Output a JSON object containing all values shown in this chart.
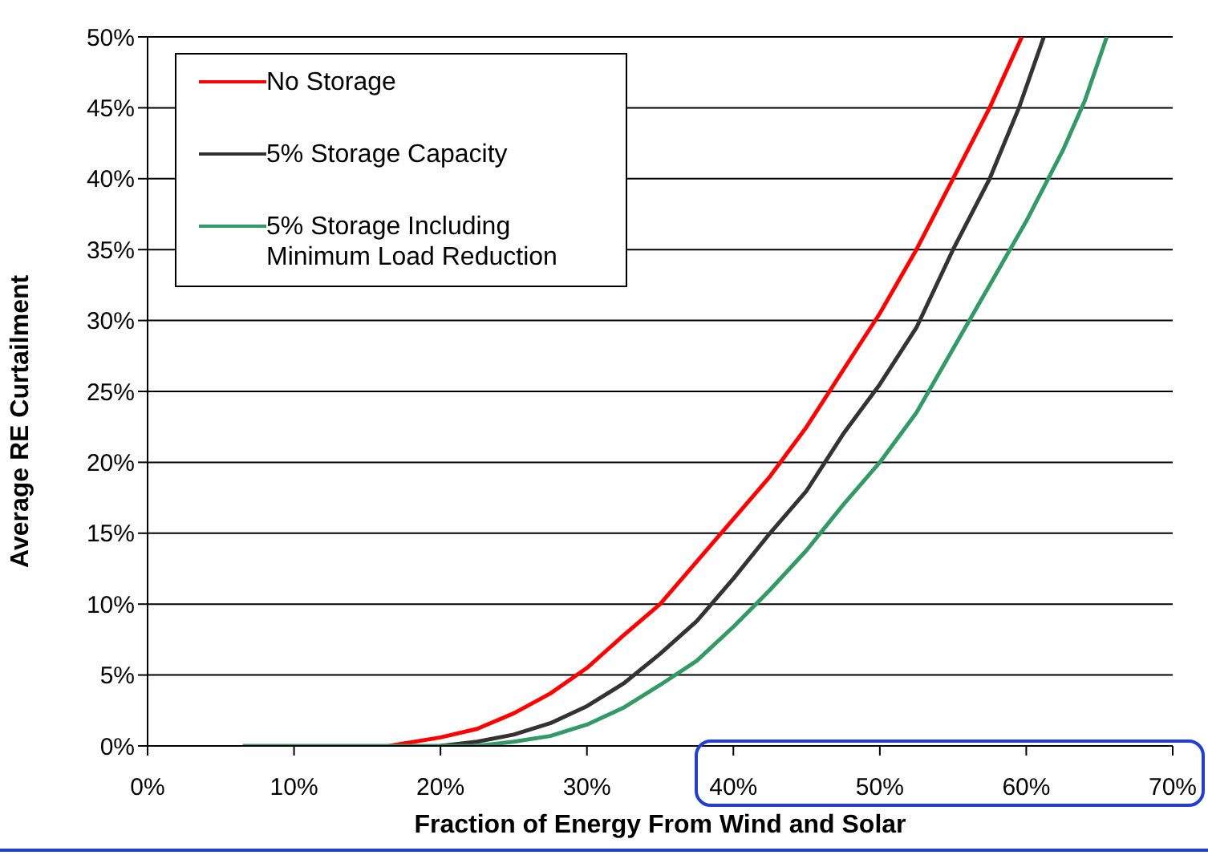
{
  "chart_data": {
    "type": "line",
    "xlabel": "Fraction of Energy From Wind and Solar",
    "ylabel": "Average RE Curtailment",
    "xlim": [
      0,
      70
    ],
    "xticks": [
      {
        "value": 0,
        "label": "0%"
      },
      {
        "value": 10,
        "label": "10%"
      },
      {
        "value": 20,
        "label": "20%"
      },
      {
        "value": 30,
        "label": "30%"
      },
      {
        "value": 40,
        "label": "40%"
      },
      {
        "value": 50,
        "label": "50%"
      },
      {
        "value": 60,
        "label": "60%"
      },
      {
        "value": 70,
        "label": "70%"
      }
    ],
    "ylim": [
      0,
      50
    ],
    "yticks": [
      {
        "value": 0,
        "label": "0%"
      },
      {
        "value": 5,
        "label": "5%"
      },
      {
        "value": 10,
        "label": "10%"
      },
      {
        "value": 15,
        "label": "15%"
      },
      {
        "value": 20,
        "label": "20%"
      },
      {
        "value": 25,
        "label": "25%"
      },
      {
        "value": 30,
        "label": "30%"
      },
      {
        "value": 35,
        "label": "35%"
      },
      {
        "value": 40,
        "label": "40%"
      },
      {
        "value": 45,
        "label": "45%"
      },
      {
        "value": 50,
        "label": "50%"
      }
    ],
    "grid": "y",
    "legend": "top left",
    "marker": "none",
    "line_style": "solid",
    "series": [
      {
        "name": "No Storage",
        "color": "#ff0000",
        "x": [
          16.5,
          20,
          22.5,
          25,
          27.5,
          30,
          32.5,
          35,
          37.5,
          40,
          42.5,
          45,
          47.5,
          50,
          52.5,
          55,
          57.5,
          59.7
        ],
        "values": [
          0,
          0.6,
          1.2,
          2.3,
          3.7,
          5.5,
          7.8,
          10,
          13,
          16,
          19,
          22.5,
          26.5,
          30.5,
          35,
          40,
          45,
          50
        ]
      },
      {
        "name": "5% Storage Capacity",
        "color": "#333333",
        "x": [
          20,
          22.5,
          25,
          27.5,
          30,
          32.5,
          35,
          37.5,
          40,
          42.5,
          45,
          47.5,
          50,
          52.5,
          55,
          57.5,
          59.5,
          61.2
        ],
        "values": [
          0,
          0.3,
          0.8,
          1.6,
          2.8,
          4.4,
          6.5,
          8.8,
          11.8,
          15,
          18,
          22,
          25.5,
          29.5,
          35,
          40,
          45,
          50
        ]
      },
      {
        "name": "5% Storage Including\nMinimum Load Reduction",
        "color": "#339966",
        "x": [
          6.5,
          22.5,
          25,
          27.5,
          30,
          32.5,
          35,
          37.5,
          40,
          42.5,
          45,
          47.5,
          50,
          52.5,
          55,
          57.5,
          60,
          62.5,
          64,
          65.5
        ],
        "values": [
          0,
          0,
          0.3,
          0.7,
          1.5,
          2.7,
          4.3,
          6,
          8.4,
          11,
          13.8,
          17,
          20,
          23.5,
          28,
          32.5,
          37,
          42,
          45.5,
          50
        ]
      }
    ]
  }
}
